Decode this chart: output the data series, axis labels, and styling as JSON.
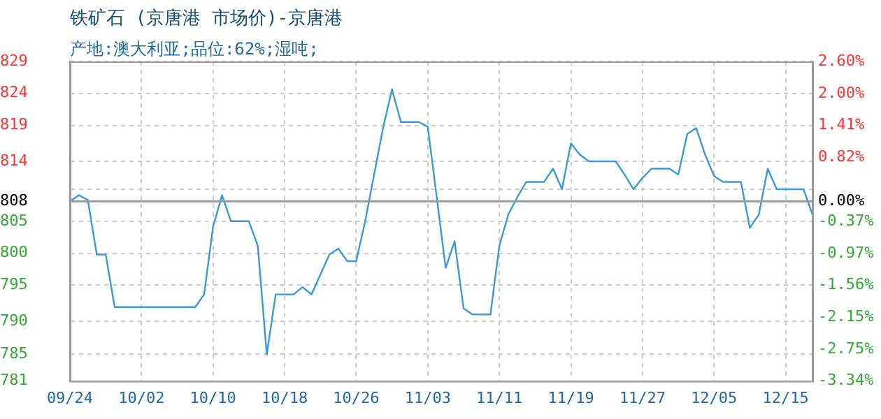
{
  "chart_data": {
    "type": "line",
    "title": "铁矿石 (京唐港 市场价)-京唐港",
    "subtitle": "产地:澳大利亚;品位:62%;湿吨;",
    "categories": [
      "09/24",
      null,
      null,
      null,
      null,
      null,
      null,
      null,
      "10/02",
      null,
      null,
      null,
      null,
      null,
      null,
      null,
      "10/10",
      null,
      null,
      null,
      null,
      null,
      null,
      null,
      "10/18",
      null,
      null,
      null,
      null,
      null,
      null,
      null,
      "10/26",
      null,
      null,
      null,
      null,
      null,
      null,
      null,
      "11/03",
      null,
      null,
      null,
      null,
      null,
      null,
      null,
      "11/11",
      null,
      null,
      null,
      null,
      null,
      null,
      null,
      "11/19",
      null,
      null,
      null,
      null,
      null,
      null,
      null,
      "11/27",
      null,
      null,
      null,
      null,
      null,
      null,
      null,
      "12/05",
      null,
      null,
      null,
      null,
      null,
      null,
      null,
      "12/15",
      null,
      null,
      null
    ],
    "series": [
      {
        "color": "#3a9ad9",
        "values": [
          808,
          808.9,
          808.2,
          800,
          800,
          792.1,
          792.1,
          792.1,
          792.1,
          792.1,
          792.1,
          792.1,
          792.1,
          792.1,
          792.1,
          794,
          804.2,
          808.9,
          805,
          805,
          805,
          801.3,
          785,
          794,
          794,
          794,
          795.1,
          794,
          797,
          800,
          800.9,
          799,
          799,
          805,
          812,
          819,
          824.8,
          819.9,
          819.9,
          819.9,
          819.2,
          808.6,
          798,
          802,
          791.9,
          791,
          791,
          791,
          801.3,
          806,
          808.6,
          810.9,
          810.9,
          810.9,
          812.9,
          809.8,
          816.7,
          815,
          814,
          814,
          814,
          814,
          812,
          809.8,
          811.5,
          812.9,
          812.9,
          812.9,
          812,
          818.1,
          819,
          815,
          811.8,
          810.9,
          810.9,
          810.9,
          804,
          806,
          812.9,
          809.8,
          809.8,
          809.8,
          809.8,
          806
        ]
      }
    ],
    "ylim": [
      781,
      829
    ],
    "yticks": [
      781,
      785,
      790,
      {
        "value": 795.4,
        "label": "795"
      },
      {
        "value": 800.2,
        "label": "800"
      },
      805,
      808,
      {
        "value": 809.8,
        "label": null
      },
      {
        "value": 814,
        "label": "814"
      },
      {
        "value": 819.4,
        "label": "819"
      },
      {
        "value": 824.2,
        "label": "824"
      },
      829
    ],
    "y2lim": [
      -3.34,
      2.6
    ],
    "y2ticks": [
      {
        "value": -3.34,
        "label": "-3.34%"
      },
      {
        "value": -2.746,
        "label": "-2.75%"
      },
      {
        "value": -2.152,
        "label": "-2.15%"
      },
      {
        "value": -1.558,
        "label": "-1.56%"
      },
      {
        "value": -0.97,
        "label": "-0.97%"
      },
      {
        "value": -0.37,
        "label": "-0.37%"
      },
      {
        "value": 0,
        "label": "0.00%"
      },
      {
        "value": 0.224,
        "label": null
      },
      {
        "value": 0.818,
        "label": "0.82%"
      },
      {
        "value": 1.412,
        "label": "1.41%"
      },
      {
        "value": 2.0,
        "label": "2.00%"
      },
      {
        "value": 2.6,
        "label": "2.60%"
      }
    ],
    "ref_lines": [
      {
        "axis": "y",
        "value": 808,
        "color": "#999999"
      }
    ],
    "grid": true,
    "legend": false,
    "marker": "none",
    "line_style": "solid"
  }
}
